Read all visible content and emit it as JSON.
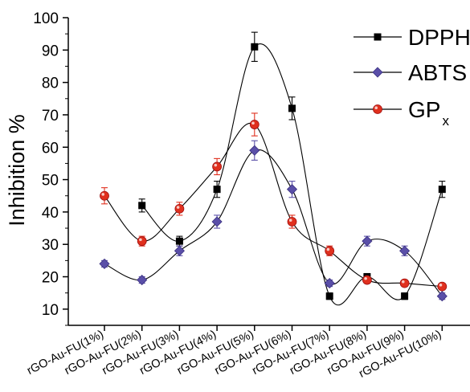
{
  "chart_data": {
    "type": "line",
    "title": "",
    "xlabel": "",
    "ylabel": "Inhibition %",
    "ylim": [
      5,
      100
    ],
    "yticks": [
      10,
      20,
      30,
      40,
      50,
      60,
      70,
      80,
      90,
      100
    ],
    "categories": [
      "rGO-Au-FU(1%)",
      "rGO-Au-FU(2%)",
      "rGO-Au-FU(3%)",
      "rGO-Au-FU(4%)",
      "rGO-Au-FU(5%)",
      "rGO-Au-FU(6%)",
      "rGO-Au-FU(7%)",
      "rGO-Au-FU(8%)",
      "rGO-Au-FU(9%)",
      "rGO-Au-FU(10%)"
    ],
    "legend_position": "top-right",
    "series": [
      {
        "name": "DPPH",
        "color": "#000000",
        "marker": "square",
        "values": [
          null,
          42,
          31,
          47,
          91,
          72,
          14,
          20,
          14,
          47
        ],
        "errors": [
          null,
          2,
          1.5,
          2.5,
          4.5,
          3.5,
          1,
          1,
          1,
          2.5
        ]
      },
      {
        "name": "ABTS",
        "color": "#5a4fa8",
        "marker": "diamond",
        "values": [
          24,
          19,
          28,
          37,
          59,
          47,
          18,
          31,
          28,
          14
        ],
        "errors": [
          1,
          1,
          1.5,
          2,
          3,
          2.5,
          1,
          1.5,
          1.5,
          1
        ]
      },
      {
        "name": "GP",
        "name_sub": "x",
        "color": "#e0301e",
        "marker": "circle",
        "values": [
          45,
          31,
          41,
          54,
          67,
          37,
          28,
          19,
          18,
          17
        ],
        "errors": [
          2.5,
          1.5,
          2,
          2.5,
          3.5,
          2,
          1.5,
          1,
          1,
          1
        ]
      }
    ]
  }
}
